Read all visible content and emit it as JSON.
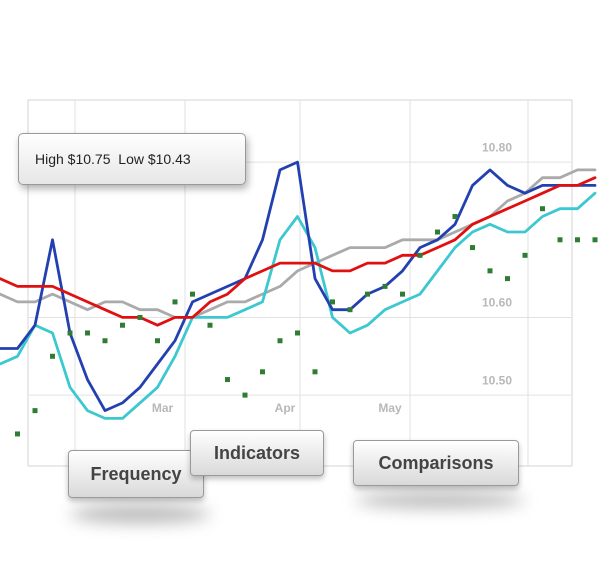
{
  "chart_data": {
    "type": "line",
    "annotations": [
      "High $10.75  Low $10.43"
    ],
    "categories": [
      null,
      null,
      null,
      null,
      null,
      null,
      null,
      null,
      null,
      "Mar",
      null,
      null,
      null,
      null,
      null,
      null,
      "Apr",
      null,
      null,
      null,
      null,
      null,
      "May",
      null,
      null,
      null,
      null,
      null,
      null,
      null,
      null,
      null,
      null,
      null,
      null
    ],
    "ylim": [
      10.41,
      10.88
    ],
    "yticks": [
      {
        "value": 10.5,
        "label": "10.50"
      },
      {
        "value": 10.6,
        "label": "10.60"
      },
      {
        "value": 10.8,
        "label": "10.80"
      }
    ],
    "grid": true,
    "series": [
      {
        "color": "#aaaaaa",
        "values": [
          10.63,
          10.62,
          10.62,
          10.63,
          10.62,
          10.61,
          10.62,
          10.62,
          10.61,
          10.61,
          10.6,
          10.6,
          10.61,
          10.62,
          10.62,
          10.63,
          10.64,
          10.66,
          10.67,
          10.68,
          10.69,
          10.69,
          10.69,
          10.7,
          10.7,
          10.7,
          10.71,
          10.72,
          10.73,
          10.75,
          10.76,
          10.78,
          10.78,
          10.79,
          10.79
        ]
      },
      {
        "color": "#3cc8d0",
        "values": [
          10.54,
          10.55,
          10.59,
          10.58,
          10.51,
          10.48,
          10.47,
          10.47,
          10.49,
          10.51,
          10.55,
          10.6,
          10.6,
          10.6,
          10.61,
          10.62,
          10.7,
          10.73,
          10.69,
          10.6,
          10.58,
          10.59,
          10.61,
          10.62,
          10.63,
          10.66,
          10.69,
          10.71,
          10.72,
          10.71,
          10.71,
          10.73,
          10.74,
          10.74,
          10.76
        ]
      },
      {
        "color": "#2340b0",
        "values": [
          10.56,
          10.56,
          10.59,
          10.7,
          10.58,
          10.52,
          10.48,
          10.49,
          10.51,
          10.54,
          10.57,
          10.62,
          10.63,
          10.64,
          10.65,
          10.7,
          10.79,
          10.8,
          10.65,
          10.61,
          10.61,
          10.63,
          10.64,
          10.66,
          10.69,
          10.7,
          10.72,
          10.77,
          10.79,
          10.77,
          10.76,
          10.77,
          10.77,
          10.77,
          10.77
        ]
      },
      {
        "color": "#e01010",
        "values": [
          10.65,
          10.64,
          10.64,
          10.64,
          10.63,
          10.62,
          10.61,
          10.6,
          10.6,
          10.59,
          10.6,
          10.6,
          10.62,
          10.63,
          10.65,
          10.66,
          10.67,
          10.67,
          10.67,
          10.66,
          10.66,
          10.67,
          10.67,
          10.68,
          10.68,
          10.69,
          10.7,
          10.72,
          10.73,
          10.74,
          10.75,
          10.76,
          10.77,
          10.77,
          10.78
        ]
      },
      {
        "color": "#2e7d32",
        "marker": "square",
        "values": [
          null,
          10.45,
          10.48,
          10.55,
          10.58,
          10.58,
          10.57,
          10.59,
          10.6,
          10.57,
          10.62,
          10.63,
          10.59,
          10.52,
          10.5,
          10.53,
          10.57,
          10.58,
          10.53,
          10.62,
          10.61,
          10.63,
          10.64,
          10.63,
          10.68,
          10.71,
          10.73,
          10.69,
          10.66,
          10.65,
          10.68,
          10.74,
          10.7,
          10.7,
          10.7
        ]
      }
    ]
  },
  "buttons": [
    "Frequency",
    "Indicators",
    "Comparisons"
  ]
}
